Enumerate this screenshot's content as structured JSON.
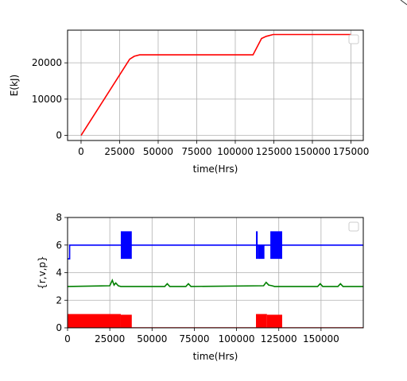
{
  "chart_data": [
    {
      "type": "line",
      "xlabel": "time(Hrs)",
      "ylabel": "E(kJ)",
      "xlim": [
        -8750,
        183000
      ],
      "ylim": [
        -1400,
        29000
      ],
      "grid": true,
      "legend": "top-right",
      "x_ticks": [
        "0",
        "25000",
        "50000",
        "75000",
        "100000",
        "125000",
        "150000",
        "175000"
      ],
      "x_tick_values": [
        0,
        25000,
        50000,
        75000,
        100000,
        125000,
        150000,
        175000
      ],
      "y_ticks": [
        "0",
        "10000",
        "20000"
      ],
      "y_tick_values": [
        0,
        10000,
        20000
      ],
      "series": [
        {
          "color": "#ff0000",
          "x": [
            0,
            31500,
            34500,
            38000,
            111500,
            117000,
            120000,
            124500,
            175000
          ],
          "y": [
            0,
            21000,
            21800,
            22200,
            22200,
            26700,
            27300,
            27800,
            27800
          ]
        }
      ]
    },
    {
      "type": "line",
      "xlabel": "time(Hrs)",
      "ylabel": "{r,v,p}",
      "xlim": [
        0,
        175000
      ],
      "ylim": [
        0,
        8
      ],
      "grid": true,
      "legend": "top-right",
      "x_ticks": [
        "0",
        "25000",
        "50000",
        "75000",
        "100000",
        "125000",
        "150000"
      ],
      "x_tick_values": [
        0,
        25000,
        50000,
        75000,
        100000,
        125000,
        150000
      ],
      "y_ticks": [
        "0",
        "2",
        "4",
        "6",
        "8"
      ],
      "y_tick_values": [
        0,
        2,
        4,
        6,
        8
      ],
      "series": [
        {
          "color": "#0000ff",
          "x": [
            0,
            1200,
            1200,
            175000
          ],
          "y": [
            5,
            5,
            6,
            6
          ],
          "blocks": [
            {
              "x0": 31500,
              "x1": 38000,
              "y0": 5,
              "y1": 7
            },
            {
              "x0": 111500,
              "x1": 112500,
              "y0": 5,
              "y1": 7
            },
            {
              "x0": 112500,
              "x1": 116500,
              "y0": 5,
              "y1": 6
            },
            {
              "x0": 120000,
              "x1": 127000,
              "y0": 5,
              "y1": 7
            }
          ]
        },
        {
          "color": "#008000",
          "x": [
            0,
            25000,
            26500,
            27500,
            28500,
            30000,
            31500,
            57500,
            59000,
            60500,
            70000,
            71500,
            73000,
            116000,
            117500,
            119000,
            121000,
            122500,
            148000,
            149500,
            151000,
            160000,
            161500,
            163000,
            175000
          ],
          "y": [
            3,
            3.05,
            3.45,
            3.1,
            3.25,
            3.05,
            3,
            3,
            3.2,
            3,
            3,
            3.2,
            3,
            3.05,
            3.3,
            3.1,
            3.05,
            3,
            3,
            3.2,
            3,
            3,
            3.2,
            3,
            3
          ]
        },
        {
          "color": "#ff0000",
          "x": [
            0,
            175000
          ],
          "y": [
            0,
            0
          ],
          "blocks": [
            {
              "x0": 0,
              "x1": 31500,
              "y0": 0,
              "y1": 1
            },
            {
              "x0": 31500,
              "x1": 38000,
              "y0": 0,
              "y1": 0.95
            },
            {
              "x0": 111500,
              "x1": 118000,
              "y0": 0,
              "y1": 1
            },
            {
              "x0": 118000,
              "x1": 127000,
              "y0": 0,
              "y1": 0.95
            }
          ]
        }
      ]
    }
  ]
}
